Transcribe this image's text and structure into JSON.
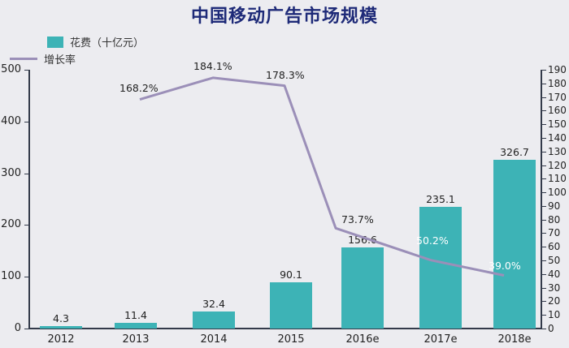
{
  "title": "中国移动广告市场规模",
  "legend": {
    "bar_label": "花费（十亿元）",
    "line_label": "增长率"
  },
  "colors": {
    "bar": "#3db3b6",
    "line": "#9b8fb8",
    "title": "#1e2a78",
    "axis": "#333a4a"
  },
  "left_axis": {
    "ticks": [
      "500",
      "400",
      "300",
      "200",
      "100",
      "0"
    ]
  },
  "right_axis": {
    "ticks": [
      "190",
      "180",
      "170",
      "160",
      "150",
      "140",
      "130",
      "120",
      "110",
      "100",
      "90",
      "80",
      "70",
      "60",
      "50",
      "40",
      "30",
      "20",
      "10",
      "0"
    ]
  },
  "categories": [
    "2012",
    "2013",
    "2014",
    "2015",
    "2016e",
    "2017e",
    "2018e"
  ],
  "bar_labels": [
    "4.3",
    "11.4",
    "32.4",
    "90.1",
    "156.6",
    "235.1",
    "326.7"
  ],
  "rate_labels": [
    "168.2%",
    "184.1%",
    "178.3%",
    "73.7%",
    "50.2%",
    "39.0%"
  ],
  "chart_data": {
    "type": "bar",
    "title": "中国移动广告市场规模",
    "categories": [
      "2012",
      "2013",
      "2014",
      "2015",
      "2016e",
      "2017e",
      "2018e"
    ],
    "series": [
      {
        "name": "花费（十亿元）",
        "type": "bar",
        "axis": "left",
        "values": [
          4.3,
          11.4,
          32.4,
          90.1,
          156.6,
          235.1,
          326.7
        ]
      },
      {
        "name": "增长率",
        "type": "line",
        "axis": "right",
        "unit": "%",
        "values": [
          null,
          168.2,
          184.1,
          178.3,
          73.7,
          50.2,
          39.0
        ]
      }
    ],
    "xlabel": "",
    "ylabel": "",
    "ylim": [
      0,
      500
    ],
    "y2lim": [
      0,
      190
    ],
    "yticks": [
      0,
      100,
      200,
      300,
      400,
      500
    ],
    "y2ticks": [
      0,
      10,
      20,
      30,
      40,
      50,
      60,
      70,
      80,
      90,
      100,
      110,
      120,
      130,
      140,
      150,
      160,
      170,
      180,
      190
    ],
    "legend_position": "top-left",
    "grid": false
  }
}
